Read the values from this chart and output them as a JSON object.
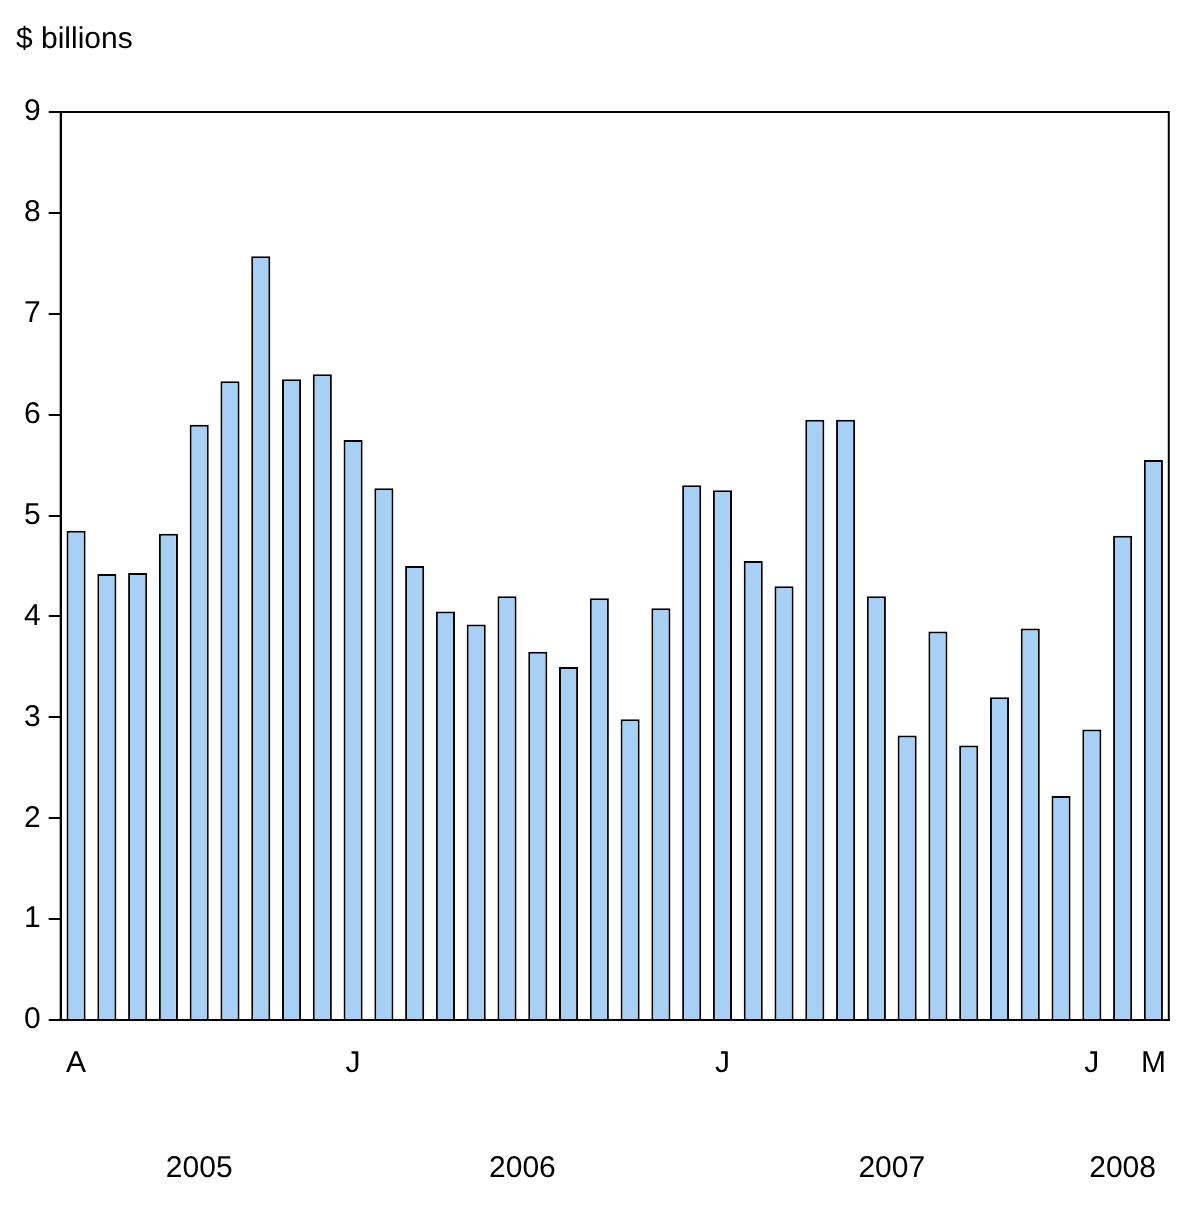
{
  "chart_data": {
    "type": "bar",
    "ylabel": "$ billions",
    "categories": [
      "A",
      null,
      null,
      null,
      null,
      null,
      null,
      null,
      null,
      "J",
      null,
      null,
      null,
      null,
      null,
      null,
      null,
      null,
      null,
      null,
      null,
      "J",
      null,
      null,
      null,
      null,
      null,
      null,
      null,
      null,
      null,
      null,
      null,
      "J",
      null,
      "M"
    ],
    "values": [
      4.85,
      4.42,
      4.43,
      4.82,
      5.9,
      6.33,
      7.57,
      6.35,
      6.4,
      5.75,
      5.27,
      4.5,
      4.05,
      3.92,
      4.2,
      3.65,
      3.5,
      4.18,
      2.98,
      4.08,
      5.3,
      5.25,
      4.55,
      4.3,
      5.95,
      5.95,
      4.2,
      2.82,
      3.85,
      2.72,
      3.2,
      3.88,
      2.22,
      2.88,
      4.8,
      5.55
    ],
    "color": "#a8d0f5",
    "ylim": [
      0,
      9
    ],
    "yticks": [
      0,
      1,
      2,
      3,
      4,
      5,
      6,
      7,
      8,
      9
    ],
    "grid": false,
    "legend": false,
    "annotations": [
      "2005",
      "2006",
      "2007",
      "2008"
    ]
  }
}
